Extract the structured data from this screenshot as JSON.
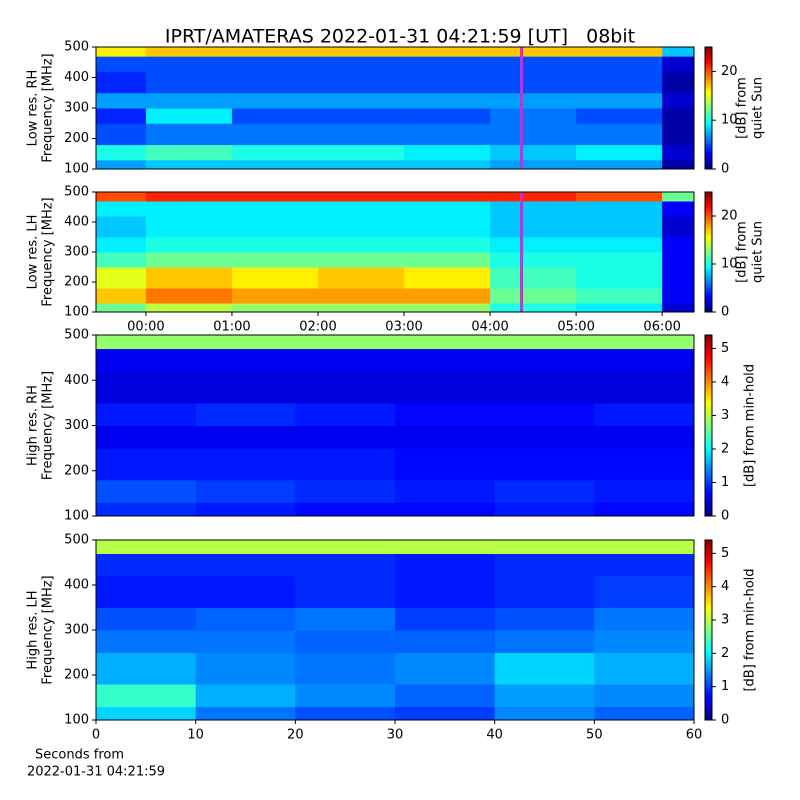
{
  "chart_data": [
    {
      "type": "heatmap",
      "title": "IPRT/AMATERAS 2022-01-31 04:21:59 [UT]   08bit",
      "ylabel": [
        "Low res. RH",
        "Frequency [MHz]"
      ],
      "cbar_label": [
        "[dB] from",
        "quiet Sun"
      ],
      "xlim": [
        -0.58,
        6.37
      ],
      "ylim": [
        100,
        500
      ],
      "yticks": [
        100,
        200,
        300,
        400,
        500
      ],
      "clim": [
        0,
        25
      ],
      "cticks": [
        0,
        10,
        20
      ],
      "colormap": "jet",
      "marker_x": 4.366,
      "marker_color": "#d42ad4",
      "xbins": [
        -0.58,
        0,
        1,
        2,
        3,
        4,
        5,
        6,
        6.37
      ],
      "ybins": [
        100,
        130,
        180,
        250,
        300,
        350,
        420,
        470,
        500
      ],
      "z": [
        [
          7,
          8,
          8,
          8,
          8,
          7,
          7,
          1
        ],
        [
          10,
          11,
          10,
          10,
          9,
          8,
          9,
          2
        ],
        [
          5,
          6,
          6,
          6,
          6,
          6,
          6,
          1
        ],
        [
          4,
          9,
          5,
          5,
          5,
          6,
          5,
          1
        ],
        [
          7,
          7,
          7,
          7,
          7,
          7,
          7,
          2
        ],
        [
          4,
          5,
          5,
          5,
          5,
          5,
          5,
          1
        ],
        [
          5,
          5,
          5,
          5,
          5,
          5,
          5,
          2
        ],
        [
          16,
          17,
          17,
          17,
          17,
          17,
          17,
          8
        ]
      ]
    },
    {
      "type": "heatmap",
      "ylabel": [
        "Low res. LH",
        "Frequency [MHz]"
      ],
      "cbar_label": [
        "[dB] from",
        "quiet Sun"
      ],
      "xlim": [
        -0.58,
        6.37
      ],
      "ylim": [
        100,
        500
      ],
      "yticks": [
        100,
        200,
        300,
        400,
        500
      ],
      "xticks": [
        {
          "value": 0,
          "label": "00:00"
        },
        {
          "value": 1,
          "label": "01:00"
        },
        {
          "value": 2,
          "label": "02:00"
        },
        {
          "value": 3,
          "label": "03:00"
        },
        {
          "value": 4,
          "label": "04:00"
        },
        {
          "value": 5,
          "label": "05:00"
        },
        {
          "value": 6,
          "label": "06:00"
        }
      ],
      "clim": [
        0,
        25
      ],
      "cticks": [
        0,
        10,
        20
      ],
      "colormap": "jet",
      "marker_x": 4.366,
      "marker_color": "#d42ad4",
      "xbins": [
        -0.58,
        0,
        1,
        2,
        3,
        4,
        5,
        6,
        6.37
      ],
      "ybins": [
        100,
        130,
        180,
        250,
        300,
        350,
        420,
        470,
        500
      ],
      "z": [
        [
          12,
          14,
          13,
          13,
          13,
          10,
          9,
          2
        ],
        [
          17,
          19,
          18,
          18,
          18,
          12,
          11,
          3
        ],
        [
          15,
          17,
          16,
          17,
          16,
          11,
          10,
          3
        ],
        [
          11,
          12,
          12,
          12,
          12,
          10,
          10,
          3
        ],
        [
          9,
          10,
          10,
          10,
          10,
          9,
          9,
          3
        ],
        [
          8,
          9,
          9,
          9,
          9,
          8,
          8,
          2
        ],
        [
          9,
          9,
          9,
          9,
          9,
          8,
          8,
          3
        ],
        [
          20,
          21,
          21,
          21,
          21,
          21,
          20,
          12
        ]
      ]
    },
    {
      "type": "heatmap",
      "ylabel": [
        "High res. RH",
        "Frequency [MHz]"
      ],
      "cbar_label": [
        "[dB] from min-hold"
      ],
      "xlim": [
        0,
        60
      ],
      "ylim": [
        100,
        500
      ],
      "yticks": [
        100,
        200,
        300,
        400,
        500
      ],
      "clim": [
        0,
        5.4
      ],
      "cticks": [
        0,
        1,
        2,
        3,
        4,
        5
      ],
      "colormap": "jet",
      "xbins": [
        0,
        10,
        20,
        30,
        40,
        50,
        60
      ],
      "ybins": [
        100,
        130,
        180,
        250,
        300,
        350,
        420,
        470,
        500
      ],
      "z": [
        [
          0.9,
          0.8,
          0.7,
          0.7,
          0.8,
          0.7
        ],
        [
          1.1,
          1.0,
          0.9,
          0.8,
          0.9,
          0.8
        ],
        [
          0.8,
          0.8,
          0.8,
          0.7,
          0.7,
          0.7
        ],
        [
          0.6,
          0.6,
          0.6,
          0.6,
          0.6,
          0.6
        ],
        [
          0.8,
          0.9,
          0.8,
          0.7,
          0.7,
          0.8
        ],
        [
          0.5,
          0.5,
          0.5,
          0.5,
          0.5,
          0.5
        ],
        [
          0.6,
          0.6,
          0.6,
          0.6,
          0.6,
          0.6
        ],
        [
          2.8,
          2.8,
          2.8,
          2.8,
          2.8,
          2.8
        ]
      ]
    },
    {
      "type": "heatmap",
      "ylabel": [
        "High res. LH",
        "Frequency [MHz]"
      ],
      "cbar_label": [
        "[dB] from min-hold"
      ],
      "xlabel": [
        "Seconds from",
        "2022-01-31 04:21:59"
      ],
      "xlim": [
        0,
        60
      ],
      "ylim": [
        100,
        500
      ],
      "yticks": [
        100,
        200,
        300,
        400,
        500
      ],
      "xticks": [
        0,
        10,
        20,
        30,
        40,
        50,
        60
      ],
      "clim": [
        0,
        5.4
      ],
      "cticks": [
        0,
        1,
        2,
        3,
        4,
        5
      ],
      "colormap": "jet",
      "xbins": [
        0,
        10,
        20,
        30,
        40,
        50,
        60
      ],
      "ybins": [
        100,
        130,
        180,
        250,
        300,
        350,
        420,
        470,
        500
      ],
      "z": [
        [
          1.8,
          1.3,
          1.1,
          1.0,
          1.4,
          1.2
        ],
        [
          2.3,
          1.6,
          1.4,
          1.2,
          1.5,
          1.4
        ],
        [
          1.6,
          1.4,
          1.3,
          1.4,
          1.8,
          1.6
        ],
        [
          1.3,
          1.3,
          1.2,
          1.2,
          1.3,
          1.4
        ],
        [
          1.1,
          1.2,
          1.3,
          1.0,
          1.1,
          1.3
        ],
        [
          0.8,
          0.8,
          0.9,
          0.8,
          0.9,
          1.0
        ],
        [
          0.9,
          0.9,
          0.9,
          0.8,
          0.9,
          0.9
        ],
        [
          3.0,
          3.0,
          3.0,
          3.0,
          3.0,
          3.0
        ]
      ]
    }
  ]
}
